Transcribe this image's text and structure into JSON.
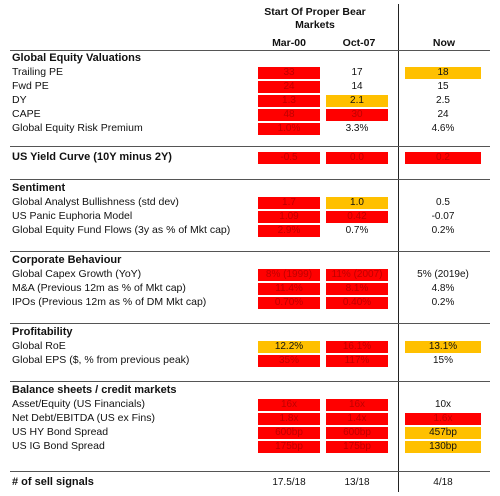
{
  "header": {
    "title_line1": "Start Of Proper Bear",
    "title_line2": "Markets",
    "col1": "Mar-00",
    "col2": "Oct-07",
    "col3": "Now"
  },
  "sections": [
    {
      "title": "Global Equity Valuations",
      "rows": [
        {
          "label": "Trailing PE",
          "c1": "33",
          "c2": "17",
          "c3": "18",
          "s1": "red",
          "s2": "plain",
          "s3": "yel"
        },
        {
          "label": "Fwd PE",
          "c1": "24",
          "c2": "14",
          "c3": "15",
          "s1": "red",
          "s2": "plain",
          "s3": "plain"
        },
        {
          "label": "DY",
          "c1": "1.3",
          "c2": "2.1",
          "c3": "2.5",
          "s1": "red",
          "s2": "yel",
          "s3": "plain"
        },
        {
          "label": "CAPE",
          "c1": "48",
          "c2": "30",
          "c3": "24",
          "s1": "red",
          "s2": "red",
          "s3": "plain"
        },
        {
          "label": "Global Equity Risk Premium",
          "c1": "1.0%",
          "c2": "3.3%",
          "c3": "4.6%",
          "s1": "red",
          "s2": "plain",
          "s3": "plain"
        }
      ]
    },
    {
      "title": "US Yield Curve (10Y minus 2Y)",
      "rows": [
        {
          "label": "",
          "c1": "-0.5",
          "c2": "0.0",
          "c3": "0.2",
          "s1": "red",
          "s2": "red",
          "s3": "red"
        }
      ]
    },
    {
      "title": "Sentiment",
      "rows": [
        {
          "label": "Global Analyst Bullishness (std dev)",
          "c1": "1.7",
          "c2": "1.0",
          "c3": "0.5",
          "s1": "red",
          "s2": "yel",
          "s3": "plain"
        },
        {
          "label": "US Panic Euphoria Model",
          "c1": "1.09",
          "c2": "0.42",
          "c3": "-0.07",
          "s1": "red",
          "s2": "red",
          "s3": "plain"
        },
        {
          "label": "Global Equity Fund Flows (3y as % of Mkt cap)",
          "c1": "2.9%",
          "c2": "0.7%",
          "c3": "0.2%",
          "s1": "red",
          "s2": "plain",
          "s3": "plain"
        }
      ]
    },
    {
      "title": "Corporate Behaviour",
      "rows": [
        {
          "label": "Global Capex Growth (YoY)",
          "c1": "8% (1999)",
          "c2": "11% (2007)",
          "c3": "5% (2019e)",
          "s1": "red",
          "s2": "red",
          "s3": "plain"
        },
        {
          "label": "M&A (Previous 12m as % of Mkt cap)",
          "c1": "11.4%",
          "c2": "8.1%",
          "c3": "4.8%",
          "s1": "red",
          "s2": "red",
          "s3": "plain"
        },
        {
          "label": "IPOs (Previous 12m as % of DM Mkt cap)",
          "c1": "0.70%",
          "c2": "0.40%",
          "c3": "0.2%",
          "s1": "red",
          "s2": "red",
          "s3": "plain"
        }
      ]
    },
    {
      "title": "Profitability",
      "rows": [
        {
          "label": "Global RoE",
          "c1": "12.2%",
          "c2": "16.1%",
          "c3": "13.1%",
          "s1": "yel",
          "s2": "red",
          "s3": "yel"
        },
        {
          "label": "Global EPS  ($, % from previous peak)",
          "c1": "35%",
          "c2": "117%",
          "c3": "15%",
          "s1": "red",
          "s2": "red",
          "s3": "plain"
        }
      ]
    },
    {
      "title": "Balance sheets / credit markets",
      "rows": [
        {
          "label": "Asset/Equity (US Financials)",
          "c1": "16x",
          "c2": "16x",
          "c3": "10x",
          "s1": "red",
          "s2": "red",
          "s3": "plain"
        },
        {
          "label": "Net Debt/EBITDA (US ex Fins)",
          "c1": "1.8x",
          "c2": "1.4x",
          "c3": "1.6x",
          "s1": "red",
          "s2": "red",
          "s3": "red"
        },
        {
          "label": "US HY Bond Spread",
          "c1": "600bp",
          "c2": "600bp",
          "c3": "457bp",
          "s1": "red",
          "s2": "red",
          "s3": "yel"
        },
        {
          "label": "US IG Bond Spread",
          "c1": "175bp",
          "c2": "175bp",
          "c3": "130bp",
          "s1": "red",
          "s2": "red",
          "s3": "yel"
        }
      ]
    },
    {
      "title": "# of sell signals",
      "rows": [
        {
          "label": "",
          "c1": "17.5/18",
          "c2": "13/18",
          "c3": "4/18",
          "s1": "plain",
          "s2": "plain",
          "s3": "plain"
        }
      ]
    }
  ],
  "colors": {
    "red": "#ff0000",
    "yellow": "#ffc000",
    "red_text": "#c00000"
  }
}
